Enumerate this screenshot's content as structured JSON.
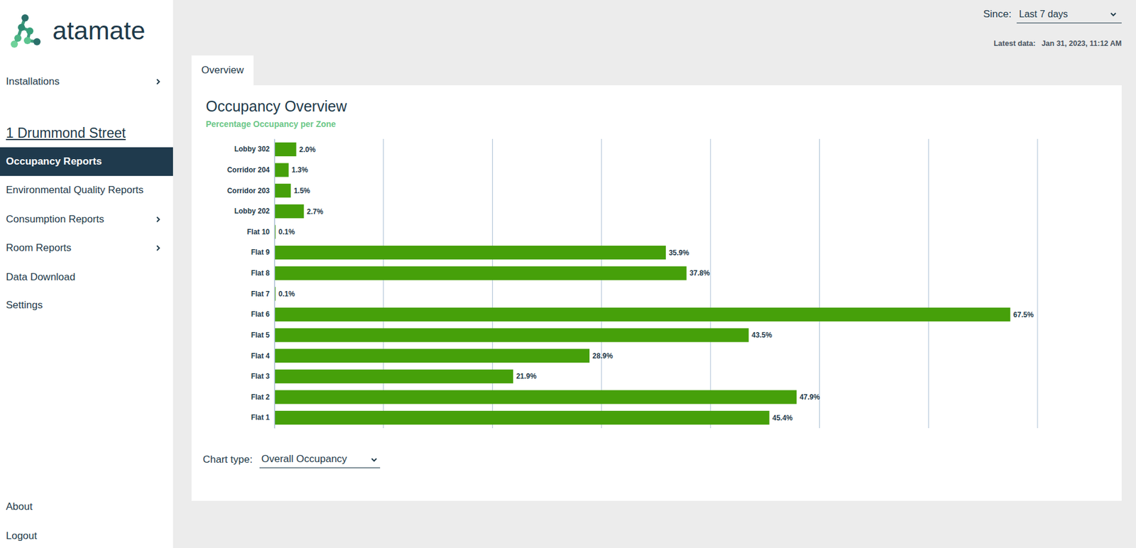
{
  "page": {
    "logo": "atamate",
    "installation": "1 Drummond Street",
    "nav_top": [
      {
        "label": "Installations",
        "submenu": true
      }
    ],
    "nav": [
      {
        "label": "Occupancy Reports",
        "active": true
      },
      {
        "label": "Environmental Quality Reports"
      },
      {
        "label": "Consumption Reports",
        "submenu": true
      },
      {
        "label": "Room Reports",
        "submenu": true
      },
      {
        "label": "Data Download"
      },
      {
        "label": "Settings"
      }
    ],
    "nav_bottom": [
      "About",
      "Logout"
    ],
    "since_label": "Since:",
    "since_value": "Last 7 days",
    "latest_label": "Latest data:",
    "latest_value": "Jan 31, 2023, 11:12 AM",
    "tab": "Overview",
    "chart_type_label": "Chart type:",
    "chart_type_value": "Overall Occupancy"
  },
  "chart_data": {
    "type": "bar",
    "orientation": "horizontal",
    "title": "Occupancy Overview",
    "subtitle": "Percentage Occupancy per Zone",
    "categories": [
      "Lobby 302",
      "Corridor 204",
      "Corridor 203",
      "Lobby 202",
      "Flat 10",
      "Flat 9",
      "Flat 8",
      "Flat 7",
      "Flat 6",
      "Flat 5",
      "Flat 4",
      "Flat 3",
      "Flat 2",
      "Flat 1"
    ],
    "values": [
      2.0,
      1.3,
      1.5,
      2.7,
      0.1,
      35.9,
      37.8,
      0.1,
      67.5,
      43.5,
      28.9,
      21.9,
      47.9,
      45.4
    ],
    "value_labels": [
      "2.0%",
      "1.3%",
      "1.5%",
      "2.7%",
      "0.1%",
      "35.9%",
      "37.8%",
      "0.1%",
      "67.5%",
      "43.5%",
      "28.9%",
      "21.9%",
      "47.9%",
      "45.4%"
    ],
    "color": "#46a00a",
    "xlim": [
      0,
      70
    ],
    "xticks": [
      0,
      10,
      20,
      30,
      40,
      50,
      60,
      70
    ],
    "grid": true,
    "data_labels": true,
    "tick_labels": "y"
  }
}
